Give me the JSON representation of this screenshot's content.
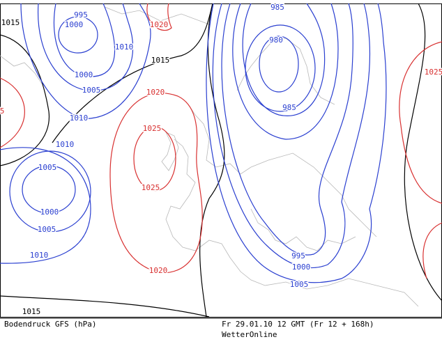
{
  "isobar_labels": [
    "1015",
    "995",
    "1000",
    "1020",
    "985",
    "980",
    "1010",
    "1015",
    "1000",
    "1005",
    "1020",
    "985",
    "1025",
    "1010",
    "5",
    "1025",
    "1010",
    "1005",
    "1025",
    "1000",
    "1005",
    "1010",
    "995",
    "1000",
    "1020",
    "1005",
    "1015"
  ],
  "footer": {
    "product": "Bodendruck GFS (hPa)",
    "valid_time": "Fr 29.01.10 12 GMT (Fr 12 + 168h)",
    "source": "WetterOnline"
  }
}
